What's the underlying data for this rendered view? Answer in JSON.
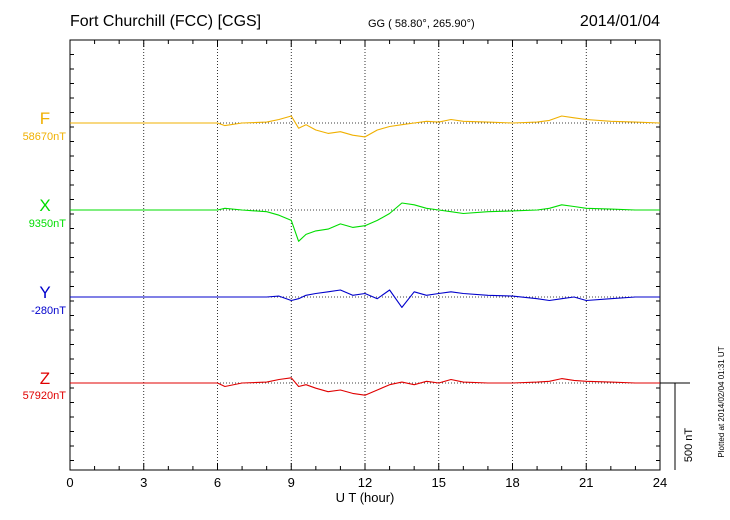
{
  "header": {
    "station": "Fort Churchill (FCC)  [CGS]",
    "coords": "GG ( 58.80°, 265.90°)",
    "date": "2014/01/04"
  },
  "footer": {
    "plotted": "Plotted at 2014/02/04 01:31  UT"
  },
  "colors": {
    "F": "#f0b000",
    "X": "#00dd00",
    "Y": "#0000cc",
    "Z": "#e00000",
    "axis": "#000000",
    "grid": "#000000"
  },
  "chart_data": {
    "type": "line",
    "xlabel": "U T (hour)",
    "xlim": [
      0,
      24
    ],
    "xticks": [
      0,
      3,
      6,
      9,
      12,
      15,
      18,
      21,
      24
    ],
    "xtick_labels": [
      "0",
      "3",
      "6",
      "9",
      "12",
      "15",
      "18",
      "21",
      "24"
    ],
    "units_per_division_nT": 500,
    "scale_bar_label": "500 nT",
    "grid": "vertical dotted every 3 hours; dotted baseline per series",
    "series": [
      {
        "name": "F",
        "baseline_label": "58670nT",
        "x": [
          0,
          2,
          4,
          6,
          6.3,
          7,
          8,
          8.5,
          9,
          9.3,
          9.6,
          10,
          10.5,
          11,
          11.5,
          12,
          12.5,
          13,
          13.5,
          14,
          14.5,
          15,
          15.5,
          16,
          17,
          18,
          19,
          19.5,
          20,
          20.5,
          21,
          22,
          23,
          24
        ],
        "values": [
          0,
          0,
          0,
          0,
          -15,
          0,
          5,
          20,
          40,
          -30,
          -10,
          -40,
          -60,
          -50,
          -70,
          -80,
          -40,
          -20,
          -10,
          0,
          10,
          5,
          20,
          10,
          5,
          0,
          5,
          15,
          40,
          30,
          20,
          10,
          5,
          0
        ]
      },
      {
        "name": "X",
        "baseline_label": "9350nT",
        "x": [
          0,
          2,
          4,
          6,
          6.3,
          7,
          8,
          8.5,
          9,
          9.3,
          9.6,
          10,
          10.5,
          11,
          11.5,
          12,
          12.5,
          13,
          13.5,
          14,
          14.5,
          15,
          15.5,
          16,
          17,
          18,
          19,
          19.5,
          20,
          20.5,
          21,
          22,
          23,
          24
        ],
        "values": [
          0,
          0,
          0,
          0,
          10,
          0,
          -10,
          -30,
          -60,
          -180,
          -140,
          -120,
          -110,
          -80,
          -100,
          -90,
          -60,
          -20,
          40,
          30,
          10,
          0,
          -10,
          -20,
          -10,
          -5,
          0,
          10,
          30,
          20,
          10,
          5,
          0,
          0
        ]
      },
      {
        "name": "Y",
        "baseline_label": "-280nT",
        "x": [
          0,
          2,
          4,
          6,
          7,
          8,
          8.5,
          9,
          9.3,
          9.6,
          10,
          10.5,
          11,
          11.5,
          12,
          12.5,
          13,
          13.5,
          14,
          14.5,
          15,
          15.5,
          16,
          17,
          18,
          19,
          19.5,
          20,
          20.5,
          21,
          22,
          23,
          24
        ],
        "values": [
          0,
          0,
          0,
          0,
          0,
          0,
          5,
          -20,
          -10,
          10,
          20,
          30,
          40,
          10,
          20,
          -10,
          40,
          -60,
          30,
          10,
          20,
          30,
          20,
          10,
          5,
          -10,
          -20,
          -10,
          0,
          -20,
          -10,
          0,
          0
        ]
      },
      {
        "name": "Z",
        "baseline_label": "57920nT",
        "x": [
          0,
          2,
          4,
          6,
          6.3,
          7,
          8,
          8.5,
          9,
          9.3,
          9.6,
          10,
          10.5,
          11,
          11.5,
          12,
          12.5,
          13,
          13.5,
          14,
          14.5,
          15,
          15.5,
          16,
          17,
          18,
          19,
          19.5,
          20,
          20.5,
          21,
          22,
          23,
          24
        ],
        "values": [
          0,
          0,
          0,
          0,
          -20,
          0,
          5,
          20,
          30,
          -20,
          -10,
          -30,
          -50,
          -40,
          -60,
          -70,
          -40,
          -10,
          5,
          -10,
          10,
          0,
          20,
          5,
          0,
          0,
          5,
          10,
          25,
          15,
          10,
          5,
          0,
          0
        ]
      }
    ]
  }
}
